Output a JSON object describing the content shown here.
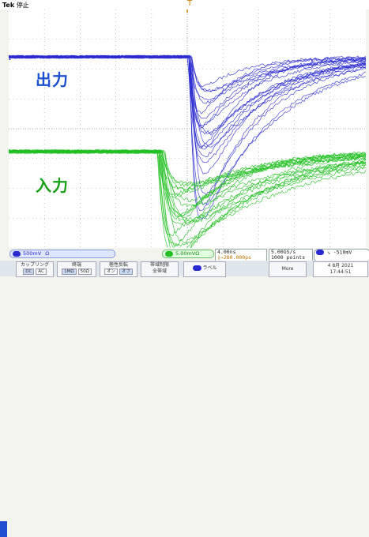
{
  "header": {
    "brand": "Tek",
    "status": "停止"
  },
  "annotations": {
    "output": "出力",
    "input": "入力"
  },
  "colors": {
    "ch1": "#2a2ad0",
    "ch2": "#22c022",
    "label_blue": "#1a4fd0",
    "label_green": "#18a018",
    "grid": "#9aa0a8"
  },
  "channels": {
    "ch1": {
      "scale": "500mV",
      "coupling_symbol": "Ω"
    },
    "ch2": {
      "scale": "5.00mV",
      "coupling_symbol": "Ω"
    }
  },
  "timebase": {
    "scale": "4.00ns",
    "delay": "▯→280.000ps",
    "sample_rate": "5.00GS/s",
    "points": "1000 points"
  },
  "trigger": {
    "slope_symbol": "↘",
    "level": "-510mV"
  },
  "menu": {
    "coupling": {
      "label": "カップリング",
      "options": [
        "DC",
        "AC"
      ]
    },
    "termination": {
      "label": "終端",
      "options": [
        "1MΩ",
        "50Ω"
      ]
    },
    "invert": {
      "label": "極性反転",
      "options": [
        "オン",
        "オフ"
      ]
    },
    "bandwidth": {
      "label": "帯域制限",
      "value": "全帯域"
    },
    "label_button": "ラベル",
    "more": "More",
    "date": "4 8月  2021",
    "time": "17:44:51"
  }
}
